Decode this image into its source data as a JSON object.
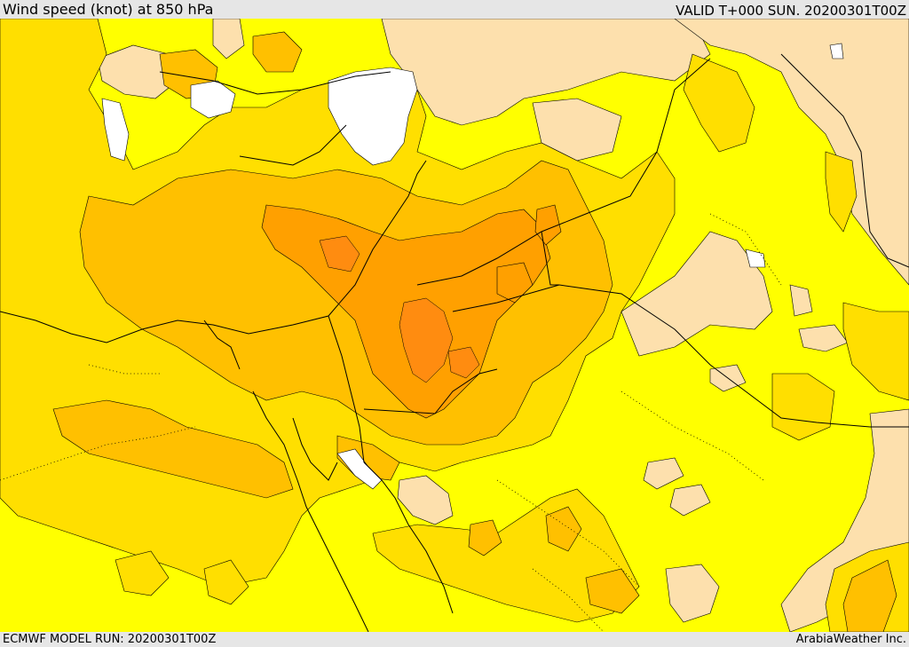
{
  "header": {
    "title": "Wind speed (knot) at 850 hPa",
    "valid": "VALID T+000 SUN. 20200301T00Z"
  },
  "footer": {
    "model_run": "ECMWF MODEL RUN: 20200301T00Z",
    "credit": "ArabiaWeather Inc."
  },
  "map": {
    "colors": {
      "calm": "#ffffff",
      "very_low": "#fde0ad",
      "low": "#ffff00",
      "moderate": "#ffdf00",
      "fresh": "#ffc000",
      "strong": "#ffa000",
      "stronger": "#ff8c10",
      "border": "#000000"
    }
  }
}
